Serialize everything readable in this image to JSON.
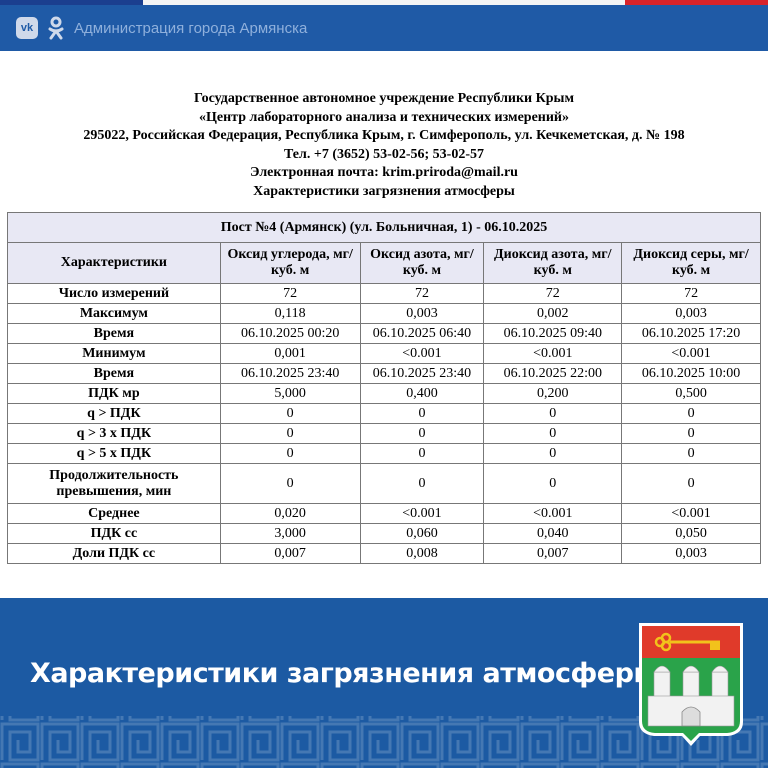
{
  "header": {
    "title": "Администрация города Армянска",
    "icons": [
      "vk-icon",
      "odnoklassniki-icon"
    ]
  },
  "org": {
    "lines": [
      "Государственное автономное учреждение Республики Крым",
      "«Центр лабораторного анализа и технических измерений»",
      "295022, Российская Федерация, Республика Крым, г. Симферополь, ул. Кечкеметская, д. № 198",
      "Тел. +7 (3652) 53-02-56; 53-02-57",
      "Электронная почта: krim.priroda@mail.ru",
      "Характеристики загрязнения атмосферы"
    ]
  },
  "table": {
    "title": "Пост №4 (Армянск) (ул. Больничная, 1) - 06.10.2025",
    "headers": [
      "Характеристики",
      "Оксид углерода, мг/куб. м",
      "Оксид азота, мг/куб. м",
      "Диоксид азота, мг/куб. м",
      "Диоксид серы, мг/куб. м"
    ],
    "rows": [
      [
        "Число измерений",
        "72",
        "72",
        "72",
        "72"
      ],
      [
        "Максимум",
        "0,118",
        "0,003",
        "0,002",
        "0,003"
      ],
      [
        "Время",
        "06.10.2025 00:20",
        "06.10.2025 06:40",
        "06.10.2025 09:40",
        "06.10.2025 17:20"
      ],
      [
        "Минимум",
        "0,001",
        "<0.001",
        "<0.001",
        "<0.001"
      ],
      [
        "Время",
        "06.10.2025 23:40",
        "06.10.2025 23:40",
        "06.10.2025 22:00",
        "06.10.2025 10:00"
      ],
      [
        "ПДК мр",
        "5,000",
        "0,400",
        "0,200",
        "0,500"
      ],
      [
        "q > ПДК",
        "0",
        "0",
        "0",
        "0"
      ],
      [
        "q > 3 x ПДК",
        "0",
        "0",
        "0",
        "0"
      ],
      [
        "q > 5 x ПДК",
        "0",
        "0",
        "0",
        "0"
      ],
      [
        "Продолжительность превышения, мин",
        "0",
        "0",
        "0",
        "0"
      ],
      [
        "Среднее",
        "0,020",
        "<0.001",
        "<0.001",
        "<0.001"
      ],
      [
        "ПДК сс",
        "3,000",
        "0,060",
        "0,040",
        "0,050"
      ],
      [
        "Доли ПДК сс",
        "0,007",
        "0,008",
        "0,007",
        "0,003"
      ]
    ]
  },
  "banner": {
    "title": "Характеристики загрязнения атмосферы"
  },
  "colors": {
    "brand_blue": "#1f5aa6",
    "header_row": "#e8e8f4"
  }
}
